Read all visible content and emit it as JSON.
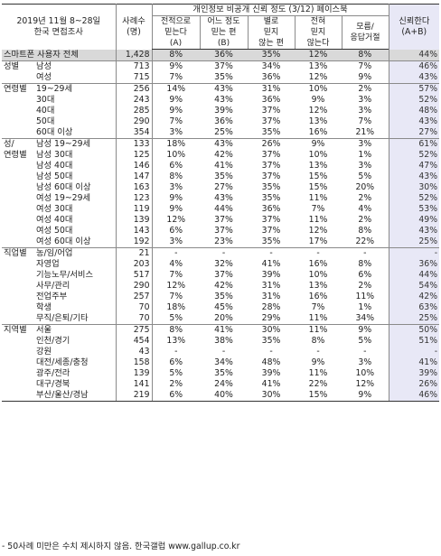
{
  "header": {
    "survey_line1": "2019년 11월 8~28일",
    "survey_line2": "한국 면접조사",
    "n_label_line1": "사례수",
    "n_label_line2": "(명)",
    "question": "개인정보 비공개 신뢰 정도 (3/12) 페이스북",
    "options": [
      {
        "l1": "전적으로",
        "l2": "믿는다",
        "l3": "(A)"
      },
      {
        "l1": "어느 정도",
        "l2": "믿는 편",
        "l3": "(B)"
      },
      {
        "l1": "별로",
        "l2": "믿지",
        "l3": "않는 편"
      },
      {
        "l1": "전혀",
        "l2": "믿지",
        "l3": "않는다"
      },
      {
        "l1": "모름/",
        "l2": "응답거절",
        "l3": ""
      }
    ],
    "trust_line1": "신뢰한다",
    "trust_line2": "(A+B)"
  },
  "rows": [
    {
      "group": "스마트폰 사용자 전체",
      "sub": "",
      "n": "1,428",
      "v": [
        "8%",
        "36%",
        "35%",
        "12%",
        "8%"
      ],
      "t": "44%",
      "cls": "total"
    },
    {
      "group": "성별",
      "sub": "남성",
      "n": "713",
      "v": [
        "9%",
        "37%",
        "34%",
        "13%",
        "7%"
      ],
      "t": "46%",
      "cls": "sec-start"
    },
    {
      "group": "",
      "sub": "여성",
      "n": "715",
      "v": [
        "7%",
        "35%",
        "36%",
        "12%",
        "9%"
      ],
      "t": "43%",
      "cls": ""
    },
    {
      "group": "연령별",
      "sub": "19~29세",
      "n": "256",
      "v": [
        "14%",
        "43%",
        "31%",
        "10%",
        "2%"
      ],
      "t": "57%",
      "cls": "sec-start"
    },
    {
      "group": "",
      "sub": "30대",
      "n": "243",
      "v": [
        "9%",
        "43%",
        "36%",
        "9%",
        "3%"
      ],
      "t": "52%",
      "cls": ""
    },
    {
      "group": "",
      "sub": "40대",
      "n": "285",
      "v": [
        "9%",
        "39%",
        "37%",
        "12%",
        "3%"
      ],
      "t": "48%",
      "cls": ""
    },
    {
      "group": "",
      "sub": "50대",
      "n": "290",
      "v": [
        "7%",
        "36%",
        "37%",
        "13%",
        "7%"
      ],
      "t": "43%",
      "cls": ""
    },
    {
      "group": "",
      "sub": "60대 이상",
      "n": "354",
      "v": [
        "3%",
        "25%",
        "35%",
        "16%",
        "21%"
      ],
      "t": "27%",
      "cls": ""
    },
    {
      "group": "성/",
      "sub": "남성 19~29세",
      "n": "133",
      "v": [
        "18%",
        "43%",
        "26%",
        "9%",
        "3%"
      ],
      "t": "61%",
      "cls": "sec-start"
    },
    {
      "group": "연령별",
      "sub": "남성 30대",
      "n": "125",
      "v": [
        "10%",
        "42%",
        "37%",
        "10%",
        "1%"
      ],
      "t": "52%",
      "cls": ""
    },
    {
      "group": "",
      "sub": "남성 40대",
      "n": "146",
      "v": [
        "6%",
        "41%",
        "37%",
        "13%",
        "3%"
      ],
      "t": "47%",
      "cls": ""
    },
    {
      "group": "",
      "sub": "남성 50대",
      "n": "147",
      "v": [
        "8%",
        "35%",
        "37%",
        "15%",
        "5%"
      ],
      "t": "43%",
      "cls": ""
    },
    {
      "group": "",
      "sub": "남성 60대 이상",
      "n": "163",
      "v": [
        "3%",
        "27%",
        "35%",
        "15%",
        "20%"
      ],
      "t": "30%",
      "cls": ""
    },
    {
      "group": "",
      "sub": "여성 19~29세",
      "n": "123",
      "v": [
        "9%",
        "43%",
        "35%",
        "11%",
        "2%"
      ],
      "t": "52%",
      "cls": "subsep"
    },
    {
      "group": "",
      "sub": "여성 30대",
      "n": "119",
      "v": [
        "9%",
        "44%",
        "36%",
        "7%",
        "4%"
      ],
      "t": "53%",
      "cls": ""
    },
    {
      "group": "",
      "sub": "여성 40대",
      "n": "139",
      "v": [
        "12%",
        "37%",
        "37%",
        "11%",
        "2%"
      ],
      "t": "49%",
      "cls": ""
    },
    {
      "group": "",
      "sub": "여성 50대",
      "n": "143",
      "v": [
        "6%",
        "37%",
        "37%",
        "12%",
        "8%"
      ],
      "t": "43%",
      "cls": ""
    },
    {
      "group": "",
      "sub": "여성 60대 이상",
      "n": "192",
      "v": [
        "3%",
        "23%",
        "35%",
        "17%",
        "22%"
      ],
      "t": "25%",
      "cls": ""
    },
    {
      "group": "직업별",
      "sub": "농/임/어업",
      "n": "21",
      "v": [
        "-",
        "-",
        "-",
        "-",
        "-"
      ],
      "t": "-",
      "cls": "sec-start"
    },
    {
      "group": "",
      "sub": "자영업",
      "n": "203",
      "v": [
        "4%",
        "32%",
        "41%",
        "16%",
        "8%"
      ],
      "t": "36%",
      "cls": ""
    },
    {
      "group": "",
      "sub": "기능노무/서비스",
      "n": "517",
      "v": [
        "7%",
        "37%",
        "39%",
        "10%",
        "6%"
      ],
      "t": "44%",
      "cls": ""
    },
    {
      "group": "",
      "sub": "사무/관리",
      "n": "290",
      "v": [
        "12%",
        "42%",
        "31%",
        "13%",
        "2%"
      ],
      "t": "54%",
      "cls": ""
    },
    {
      "group": "",
      "sub": "전업주부",
      "n": "257",
      "v": [
        "7%",
        "35%",
        "31%",
        "16%",
        "11%"
      ],
      "t": "42%",
      "cls": ""
    },
    {
      "group": "",
      "sub": "학생",
      "n": "70",
      "v": [
        "18%",
        "45%",
        "28%",
        "7%",
        "1%"
      ],
      "t": "63%",
      "cls": ""
    },
    {
      "group": "",
      "sub": "무직/은퇴/기타",
      "n": "70",
      "v": [
        "5%",
        "20%",
        "29%",
        "11%",
        "34%"
      ],
      "t": "25%",
      "cls": ""
    },
    {
      "group": "지역별",
      "sub": "서울",
      "n": "275",
      "v": [
        "8%",
        "41%",
        "30%",
        "11%",
        "9%"
      ],
      "t": "50%",
      "cls": "sec-start"
    },
    {
      "group": "",
      "sub": "인천/경기",
      "n": "454",
      "v": [
        "13%",
        "38%",
        "35%",
        "8%",
        "5%"
      ],
      "t": "51%",
      "cls": ""
    },
    {
      "group": "",
      "sub": "강원",
      "n": "43",
      "v": [
        "-",
        "-",
        "-",
        "-",
        "-"
      ],
      "t": "-",
      "cls": ""
    },
    {
      "group": "",
      "sub": "대전/세종/충청",
      "n": "158",
      "v": [
        "6%",
        "34%",
        "48%",
        "9%",
        "3%"
      ],
      "t": "41%",
      "cls": ""
    },
    {
      "group": "",
      "sub": "광주/전라",
      "n": "139",
      "v": [
        "5%",
        "35%",
        "39%",
        "11%",
        "10%"
      ],
      "t": "39%",
      "cls": ""
    },
    {
      "group": "",
      "sub": "대구/경북",
      "n": "141",
      "v": [
        "2%",
        "24%",
        "41%",
        "22%",
        "12%"
      ],
      "t": "26%",
      "cls": ""
    },
    {
      "group": "",
      "sub": "부산/울산/경남",
      "n": "219",
      "v": [
        "6%",
        "40%",
        "30%",
        "15%",
        "9%"
      ],
      "t": "46%",
      "cls": "last"
    }
  ],
  "footnote": "- 50사례 미만은 수치 제시하지 않음. 한국갤럽 www.gallup.co.kr"
}
